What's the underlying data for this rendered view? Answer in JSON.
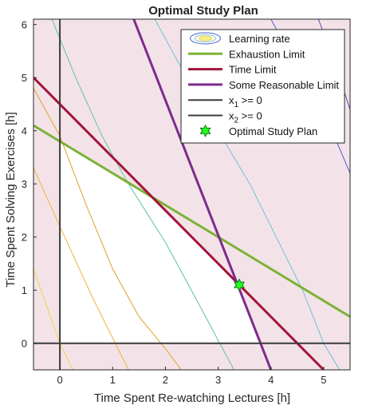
{
  "chart_data": {
    "type": "line",
    "title": "Optimal Study Plan",
    "xlabel": "Time Spent Re-watching Lectures [h]",
    "ylabel": "Time Spent Solving Exercises [h]",
    "xlim": [
      -0.5,
      5.5
    ],
    "ylim": [
      -0.5,
      6.1
    ],
    "xticks": [
      "0",
      "1",
      "2",
      "3",
      "4",
      "5"
    ],
    "yticks": [
      "0",
      "1",
      "2",
      "3",
      "4",
      "5",
      "6"
    ],
    "grid": false,
    "legend_position": "top-right",
    "colors": {
      "background": "#f3e3e8",
      "feasible": "#ffffff",
      "exhaustion": "#7cb236",
      "time": "#a3143a",
      "reasonable": "#7e2a8c",
      "axes": "#3b3b3b",
      "star": "#22ff22"
    },
    "legend": [
      {
        "label": "Learning rate",
        "kind": "contour"
      },
      {
        "label": "Exhaustion Limit",
        "kind": "line",
        "series": "exhaustion"
      },
      {
        "label": "Time Limit",
        "kind": "line",
        "series": "time"
      },
      {
        "label": "Some Reasonable Limit",
        "kind": "line",
        "series": "reasonable"
      },
      {
        "label": "x",
        "sub": "1",
        "suffix": " >= 0",
        "kind": "line",
        "series": "axis"
      },
      {
        "label": "x",
        "sub": "2",
        "suffix": " >= 0",
        "kind": "line",
        "series": "axis"
      },
      {
        "label": "Optimal Study Plan",
        "kind": "star"
      }
    ],
    "series": [
      {
        "name": "Exhaustion Limit",
        "key": "exhaustion",
        "points": [
          [
            -0.5,
            4.1
          ],
          [
            5.5,
            0.5
          ]
        ]
      },
      {
        "name": "Time Limit",
        "key": "time",
        "points": [
          [
            -0.5,
            5.0
          ],
          [
            5.0,
            -0.5
          ]
        ]
      },
      {
        "name": "Some Reasonable Limit",
        "key": "reasonable",
        "points": [
          [
            1.4,
            6.1
          ],
          [
            4.0,
            -0.5
          ]
        ]
      },
      {
        "name": "x1 >= 0",
        "key": "axis",
        "points": [
          [
            0,
            -0.5
          ],
          [
            0,
            6.1
          ]
        ]
      },
      {
        "name": "x2 >= 0",
        "key": "axis",
        "points": [
          [
            -0.5,
            0
          ],
          [
            5.5,
            0
          ]
        ]
      }
    ],
    "optimal_point": {
      "name": "Optimal Study Plan",
      "x": 3.4,
      "y": 1.1
    },
    "contours": [
      {
        "level": 1,
        "color": "#f2d24a",
        "points": [
          [
            -0.5,
            1.4
          ],
          [
            0.0,
            0.0
          ],
          [
            0.25,
            -0.5
          ]
        ]
      },
      {
        "level": 2,
        "color": "#f2b23a",
        "points": [
          [
            -0.5,
            3.3
          ],
          [
            0.0,
            2.2
          ],
          [
            0.6,
            0.9
          ],
          [
            1.3,
            -0.5
          ]
        ]
      },
      {
        "level": 3,
        "color": "#e0a02a",
        "points": [
          [
            -0.5,
            4.8
          ],
          [
            0.0,
            3.9
          ],
          [
            0.5,
            2.6
          ],
          [
            1.0,
            1.4
          ],
          [
            1.5,
            0.5
          ],
          [
            2.0,
            -0.1
          ],
          [
            2.3,
            -0.5
          ]
        ]
      },
      {
        "level": 4,
        "color": "#5fc498",
        "points": [
          [
            -0.15,
            6.1
          ],
          [
            0.3,
            5.0
          ],
          [
            0.8,
            3.9
          ],
          [
            1.3,
            3.0
          ],
          [
            2.0,
            1.9
          ],
          [
            2.6,
            0.8
          ],
          [
            3.3,
            -0.5
          ]
        ]
      },
      {
        "level": 5,
        "color": "#6fbfd8",
        "points": [
          [
            1.8,
            6.1
          ],
          [
            2.4,
            5.0
          ],
          [
            3.0,
            4.0
          ],
          [
            3.6,
            3.0
          ],
          [
            4.1,
            2.0
          ],
          [
            4.6,
            1.0
          ],
          [
            5.0,
            0.0
          ],
          [
            5.3,
            -0.5
          ]
        ]
      },
      {
        "level": 6,
        "color": "#4d60c8",
        "points": [
          [
            4.0,
            6.1
          ],
          [
            4.6,
            5.0
          ],
          [
            5.2,
            3.9
          ],
          [
            5.5,
            3.2
          ]
        ]
      },
      {
        "level": 7,
        "color": "#6a3fa8",
        "points": [
          [
            4.9,
            6.1
          ],
          [
            5.2,
            5.3
          ],
          [
            5.5,
            4.4
          ]
        ]
      }
    ]
  }
}
